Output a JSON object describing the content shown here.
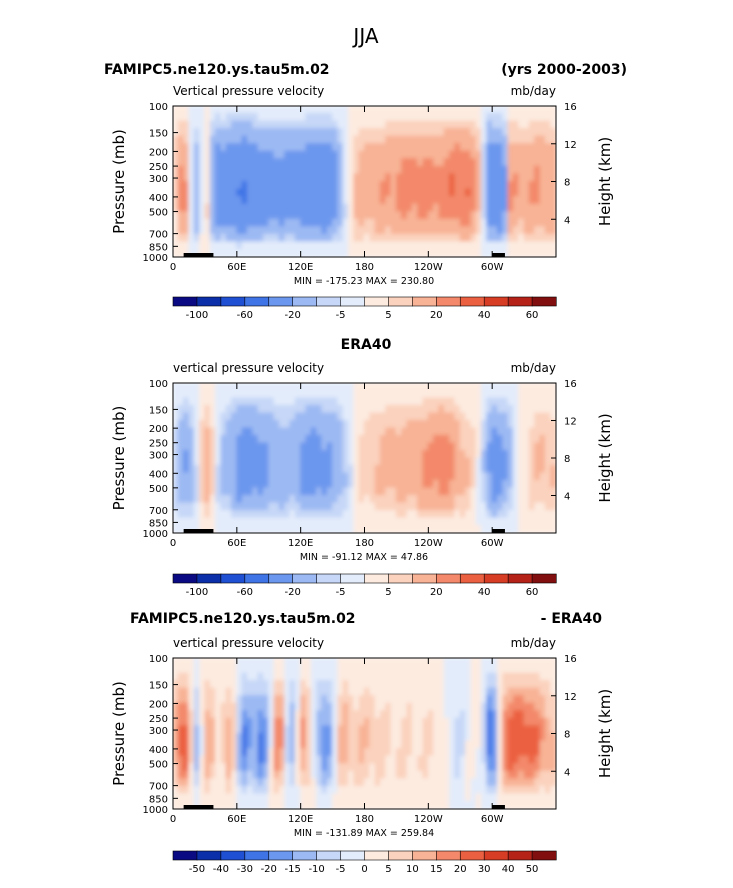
{
  "figure": {
    "title": "JJA",
    "panel1_title_left": "FAMIPC5.ne120.ys.tau5m.02",
    "panel1_title_right": "(yrs 2000-2003)",
    "panel2_title": "ERA40",
    "panel3_title_left": "FAMIPC5.ne120.ys.tau5m.02",
    "panel3_title_right": "- ERA40"
  },
  "colors": {
    "palette": [
      "#0a0a82",
      "#0b2fa8",
      "#1f4fd2",
      "#3f74e6",
      "#6c97ee",
      "#9cb9f3",
      "#c6d7f7",
      "#e3ecfb",
      "#fdebe0",
      "#fbd2bd",
      "#f8b295",
      "#f3896a",
      "#eb6041",
      "#d63d24",
      "#b52217",
      "#820f0f"
    ]
  },
  "chart_data": [
    {
      "type": "heatmap",
      "name": "model",
      "label_left": "Vertical pressure velocity",
      "label_right": "mb/day",
      "ylabel": "Pressure (mb)",
      "y2label": "Height (km)",
      "xticks": [
        "0",
        "60E",
        "120E",
        "180",
        "120W",
        "60W"
      ],
      "yticks": [
        "100",
        "150",
        "200",
        "250",
        "300",
        "400",
        "500",
        "700",
        "850",
        "1000"
      ],
      "y2ticks": [
        "16",
        "12",
        "8",
        "4"
      ],
      "stats": "MIN = -175.23   MAX = 230.80",
      "colorbar_labels": [
        "-100",
        "-60",
        "-20",
        "-5",
        "5",
        "20",
        "40",
        "60"
      ],
      "xlim": [
        0,
        360
      ],
      "zlim": [
        -175.23,
        230.8
      ]
    },
    {
      "type": "heatmap",
      "name": "era40",
      "label_left": "vertical pressure velocity",
      "label_right": "mb/day",
      "ylabel": "Pressure (mb)",
      "y2label": "Height (km)",
      "xticks": [
        "0",
        "60E",
        "120E",
        "180",
        "120W",
        "60W"
      ],
      "yticks": [
        "100",
        "150",
        "200",
        "250",
        "300",
        "400",
        "500",
        "700",
        "850",
        "1000"
      ],
      "y2ticks": [
        "16",
        "12",
        "8",
        "4"
      ],
      "stats": "MIN = -91.12   MAX =  47.86",
      "colorbar_labels": [
        "-100",
        "-60",
        "-20",
        "-5",
        "5",
        "20",
        "40",
        "60"
      ],
      "xlim": [
        0,
        360
      ],
      "zlim": [
        -91.12,
        47.86
      ]
    },
    {
      "type": "heatmap",
      "name": "difference",
      "label_left": "vertical pressure velocity",
      "label_right": "mb/day",
      "ylabel": "Pressure (mb)",
      "y2label": "Height (km)",
      "xticks": [
        "0",
        "60E",
        "120E",
        "180",
        "120W",
        "60W"
      ],
      "yticks": [
        "100",
        "150",
        "200",
        "250",
        "300",
        "400",
        "500",
        "700",
        "850",
        "1000"
      ],
      "y2ticks": [
        "16",
        "12",
        "8",
        "4"
      ],
      "stats": "MIN = -131.89   MAX = 259.84",
      "colorbar_labels": [
        "-50",
        "-40",
        "-30",
        "-20",
        "-15",
        "-10",
        "-5",
        "0",
        "5",
        "10",
        "15",
        "20",
        "30",
        "40",
        "50"
      ],
      "xlim": [
        0,
        360
      ],
      "zlim": [
        -131.89,
        259.84
      ]
    }
  ]
}
